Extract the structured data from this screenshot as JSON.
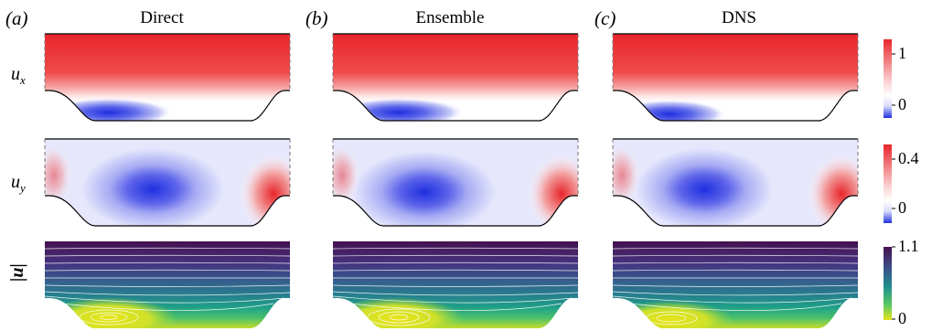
{
  "panels": [
    {
      "letter": "(a)",
      "title": "Direct"
    },
    {
      "letter": "(b)",
      "title": "Ensemble"
    },
    {
      "letter": "(c)",
      "title": "DNS"
    }
  ],
  "rows": [
    {
      "label_main": "u",
      "label_sub": "x",
      "colorbar": {
        "top": "1",
        "bottom": "0"
      }
    },
    {
      "label_main": "u",
      "label_sub": "y",
      "colorbar": {
        "top": "0.4",
        "bottom": "0"
      }
    },
    {
      "label_main": "|u|",
      "label_sub": "",
      "colorbar": {
        "top": "1.1",
        "bottom": "0"
      }
    }
  ],
  "colors": {
    "red": "#e8262b",
    "blue": "#1f2fe0",
    "viridis_dark": "#44114f",
    "viridis_mid": "#21908d",
    "viridis_yellow": "#e7e419"
  }
}
